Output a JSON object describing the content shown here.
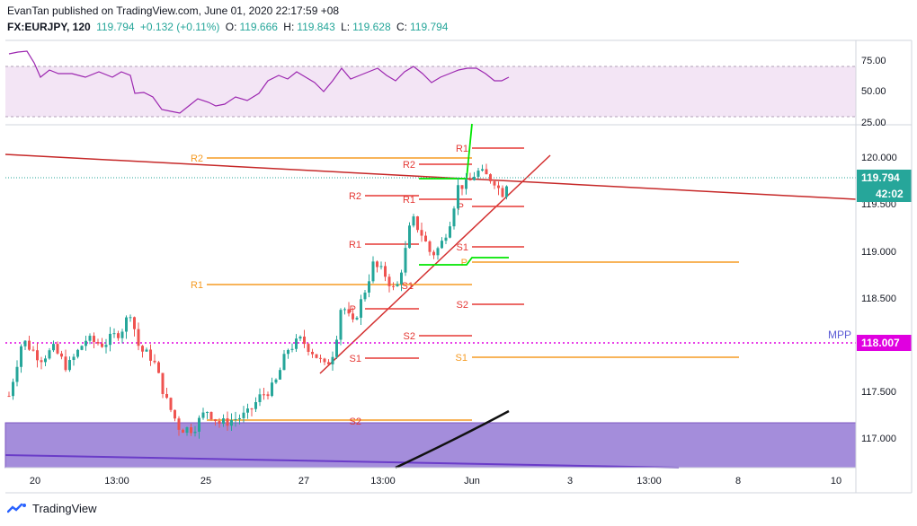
{
  "header": {
    "publisher_line": "EvanTan published on TradingView.com, June 01, 2020 22:17:59 +08",
    "symbol": "FX:EURJPY, 120",
    "last": "119.794",
    "change": "+0.132 (+0.11%)",
    "open_label": "O:",
    "open": "119.666",
    "high_label": "H:",
    "high": "119.843",
    "low_label": "L:",
    "low": "119.628",
    "close_label": "C:",
    "close": "119.794"
  },
  "rsi_axis": [
    "75.00",
    "50.00",
    "25.00"
  ],
  "price_axis": [
    "120.000",
    "119.500",
    "119.000",
    "118.500",
    "118.000",
    "117.500",
    "117.000"
  ],
  "price_badges": {
    "last_price": "119.794",
    "countdown": "42:02",
    "mpp": "118.007"
  },
  "mpp_label": "MPP",
  "time_axis": [
    "20",
    "13:00",
    "25",
    "27",
    "13:00",
    "Jun",
    "3",
    "13:00",
    "8",
    "10"
  ],
  "pivot_labels": {
    "r2_orange": "R2",
    "r1_orange": "R1",
    "s1_orange_right": "S1",
    "p_orange": "P",
    "r1_top": "R1",
    "r2_mid": "R2",
    "r1_mid": "R1",
    "p_mid": "P",
    "s1_mid": "S1",
    "s2_mid": "S2",
    "r2_left": "R2",
    "r1_left": "R1",
    "s1_left": "S1",
    "p_left": "P",
    "s2_left": "S2",
    "s1_low": "S1",
    "s2_low": "S2"
  },
  "footer": {
    "brand": "TradingView"
  },
  "colors": {
    "up": "#26a69a",
    "down": "#ef5350",
    "rsi": "#9c27b0",
    "rsi_band": "#f3e5f5",
    "pivot_red": "#e53935",
    "pivot_orange": "#f59b23",
    "trend_red": "#d32f2f",
    "mpp": "#e000e0",
    "zone": "#a48ddb",
    "green": "#00e600"
  }
}
